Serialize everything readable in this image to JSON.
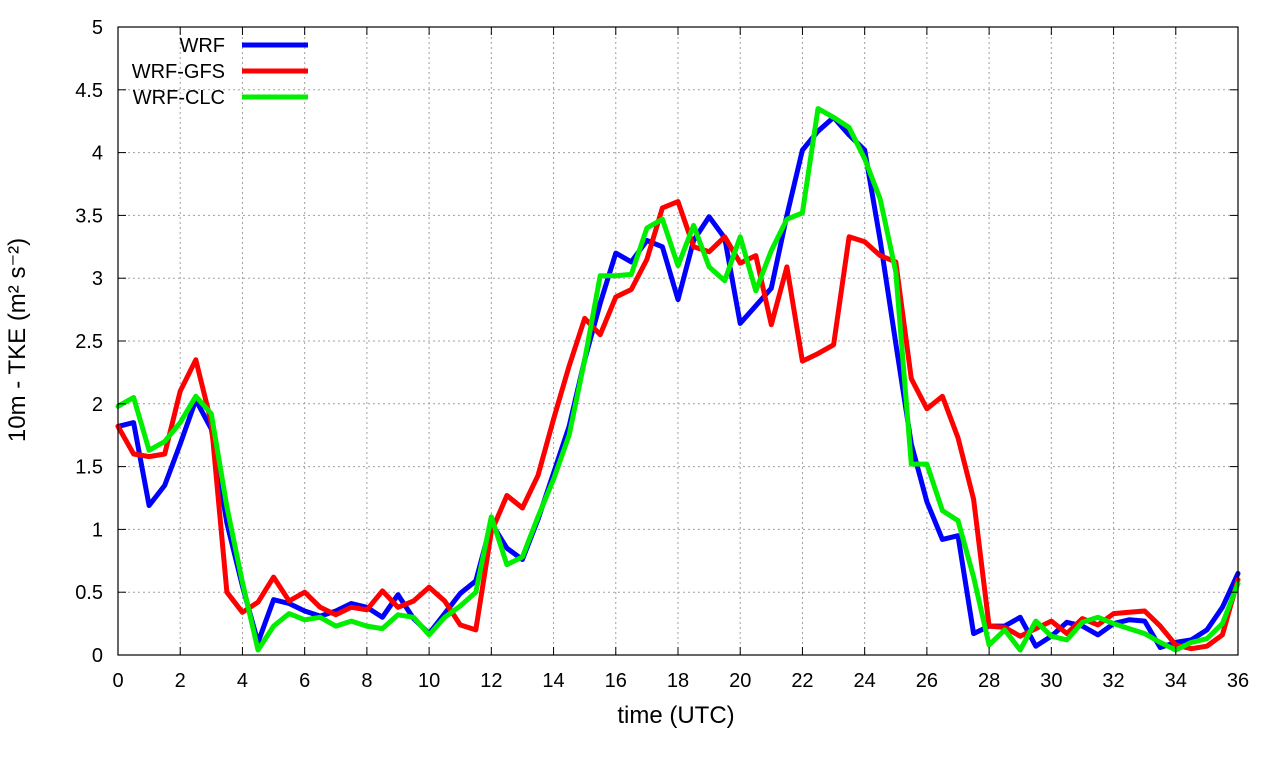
{
  "chart_data": {
    "type": "line",
    "xlabel": "time (UTC)",
    "ylabel": "10m - TKE (m² s⁻²)",
    "xlim": [
      0,
      36
    ],
    "ylim": [
      0,
      5
    ],
    "grid": true,
    "legend_position": "top-left",
    "x_ticks": [
      0,
      2,
      4,
      6,
      8,
      10,
      12,
      14,
      16,
      18,
      20,
      22,
      24,
      26,
      28,
      30,
      32,
      34,
      36
    ],
    "x_tick_labels": [
      "0",
      "2",
      "4",
      "6",
      "8",
      "10",
      "12",
      "14",
      "16",
      "18",
      "20",
      "22",
      "24",
      "26",
      "28",
      "30",
      "32",
      "34",
      "36"
    ],
    "y_ticks": [
      0,
      0.5,
      1,
      1.5,
      2,
      2.5,
      3,
      3.5,
      4,
      4.5,
      5
    ],
    "y_tick_labels": [
      "0",
      "0.5",
      "1",
      "1.5",
      "2",
      "2.5",
      "3",
      "3.5",
      "4",
      "4.5",
      "5"
    ],
    "series": [
      {
        "name": "WRF",
        "color": "#0000ff",
        "x": [
          0,
          0.5,
          1,
          1.5,
          2,
          2.5,
          3,
          3.5,
          4,
          4.5,
          5,
          5.5,
          6,
          6.5,
          7,
          7.5,
          8,
          8.5,
          9,
          9.5,
          10,
          10.5,
          11,
          11.5,
          12,
          12.5,
          13,
          13.5,
          14,
          14.5,
          15,
          15.5,
          16,
          16.5,
          17,
          17.5,
          18,
          18.5,
          19,
          19.5,
          20,
          20.5,
          21,
          21.5,
          22,
          22.5,
          23,
          23.5,
          24,
          24.5,
          25,
          25.5,
          26,
          26.5,
          27,
          27.5,
          28,
          28.5,
          29,
          29.5,
          30,
          30.5,
          31,
          31.5,
          32,
          32.5,
          33,
          33.5,
          34,
          34.5,
          35,
          35.5,
          36
        ],
        "y": [
          1.82,
          1.85,
          1.19,
          1.35,
          1.68,
          2.03,
          1.8,
          1.05,
          0.55,
          0.1,
          0.44,
          0.41,
          0.35,
          0.31,
          0.35,
          0.41,
          0.38,
          0.3,
          0.48,
          0.29,
          0.17,
          0.33,
          0.49,
          0.59,
          1.05,
          0.85,
          0.76,
          1.08,
          1.45,
          1.82,
          2.35,
          2.8,
          3.2,
          3.13,
          3.3,
          3.25,
          2.83,
          3.3,
          3.49,
          3.32,
          2.64,
          2.78,
          2.92,
          3.5,
          4.02,
          4.17,
          4.28,
          4.14,
          4.02,
          3.3,
          2.48,
          1.68,
          1.22,
          0.92,
          0.95,
          0.17,
          0.23,
          0.23,
          0.3,
          0.07,
          0.15,
          0.26,
          0.23,
          0.16,
          0.25,
          0.28,
          0.27,
          0.06,
          0.1,
          0.12,
          0.2,
          0.38,
          0.65
        ]
      },
      {
        "name": "WRF-GFS",
        "color": "#ff0000",
        "x": [
          0,
          0.5,
          1,
          1.5,
          2,
          2.5,
          3,
          3.5,
          4,
          4.5,
          5,
          5.5,
          6,
          6.5,
          7,
          7.5,
          8,
          8.5,
          9,
          9.5,
          10,
          10.5,
          11,
          11.5,
          12,
          12.5,
          13,
          13.5,
          14,
          14.5,
          15,
          15.5,
          16,
          16.5,
          17,
          17.5,
          18,
          18.5,
          19,
          19.5,
          20,
          20.5,
          21,
          21.5,
          22,
          22.5,
          23,
          23.5,
          24,
          24.5,
          25,
          25.5,
          26,
          26.5,
          27,
          27.5,
          28,
          28.5,
          29,
          29.5,
          30,
          30.5,
          31,
          31.5,
          32,
          32.5,
          33,
          33.5,
          34,
          34.5,
          35,
          35.5,
          36
        ],
        "y": [
          1.82,
          1.6,
          1.58,
          1.6,
          2.1,
          2.35,
          1.85,
          0.5,
          0.34,
          0.42,
          0.62,
          0.43,
          0.5,
          0.38,
          0.32,
          0.38,
          0.36,
          0.51,
          0.38,
          0.43,
          0.54,
          0.43,
          0.24,
          0.2,
          0.98,
          1.27,
          1.17,
          1.43,
          1.88,
          2.3,
          2.68,
          2.55,
          2.85,
          2.91,
          3.15,
          3.56,
          3.61,
          3.25,
          3.21,
          3.33,
          3.12,
          3.18,
          2.63,
          3.09,
          2.34,
          2.4,
          2.47,
          3.33,
          3.29,
          3.18,
          3.13,
          2.2,
          1.96,
          2.06,
          1.73,
          1.24,
          0.23,
          0.22,
          0.15,
          0.21,
          0.27,
          0.17,
          0.29,
          0.24,
          0.33,
          0.34,
          0.35,
          0.23,
          0.08,
          0.05,
          0.07,
          0.16,
          0.6
        ]
      },
      {
        "name": "WRF-CLC",
        "color": "#00ee00",
        "x": [
          0,
          0.5,
          1,
          1.5,
          2,
          2.5,
          3,
          3.5,
          4,
          4.5,
          5,
          5.5,
          6,
          6.5,
          7,
          7.5,
          8,
          8.5,
          9,
          9.5,
          10,
          10.5,
          11,
          11.5,
          12,
          12.5,
          13,
          13.5,
          14,
          14.5,
          15,
          15.5,
          16,
          16.5,
          17,
          17.5,
          18,
          18.5,
          19,
          19.5,
          20,
          20.5,
          21,
          21.5,
          22,
          22.5,
          23,
          23.5,
          24,
          24.5,
          25,
          25.5,
          26,
          26.5,
          27,
          27.5,
          28,
          28.5,
          29,
          29.5,
          30,
          30.5,
          31,
          31.5,
          32,
          32.5,
          33,
          33.5,
          34,
          34.5,
          35,
          35.5,
          36
        ],
        "y": [
          1.98,
          2.05,
          1.63,
          1.7,
          1.85,
          2.06,
          1.92,
          1.18,
          0.58,
          0.04,
          0.23,
          0.33,
          0.28,
          0.3,
          0.23,
          0.27,
          0.23,
          0.21,
          0.32,
          0.3,
          0.16,
          0.3,
          0.39,
          0.5,
          1.1,
          0.72,
          0.78,
          1.1,
          1.4,
          1.75,
          2.35,
          3.02,
          3.02,
          3.03,
          3.4,
          3.47,
          3.1,
          3.42,
          3.09,
          2.98,
          3.33,
          2.9,
          3.22,
          3.47,
          3.52,
          4.35,
          4.28,
          4.2,
          3.95,
          3.63,
          3.05,
          1.52,
          1.52,
          1.15,
          1.07,
          0.62,
          0.08,
          0.2,
          0.04,
          0.27,
          0.15,
          0.12,
          0.26,
          0.3,
          0.25,
          0.21,
          0.17,
          0.1,
          0.04,
          0.1,
          0.13,
          0.25,
          0.57
        ]
      }
    ]
  }
}
